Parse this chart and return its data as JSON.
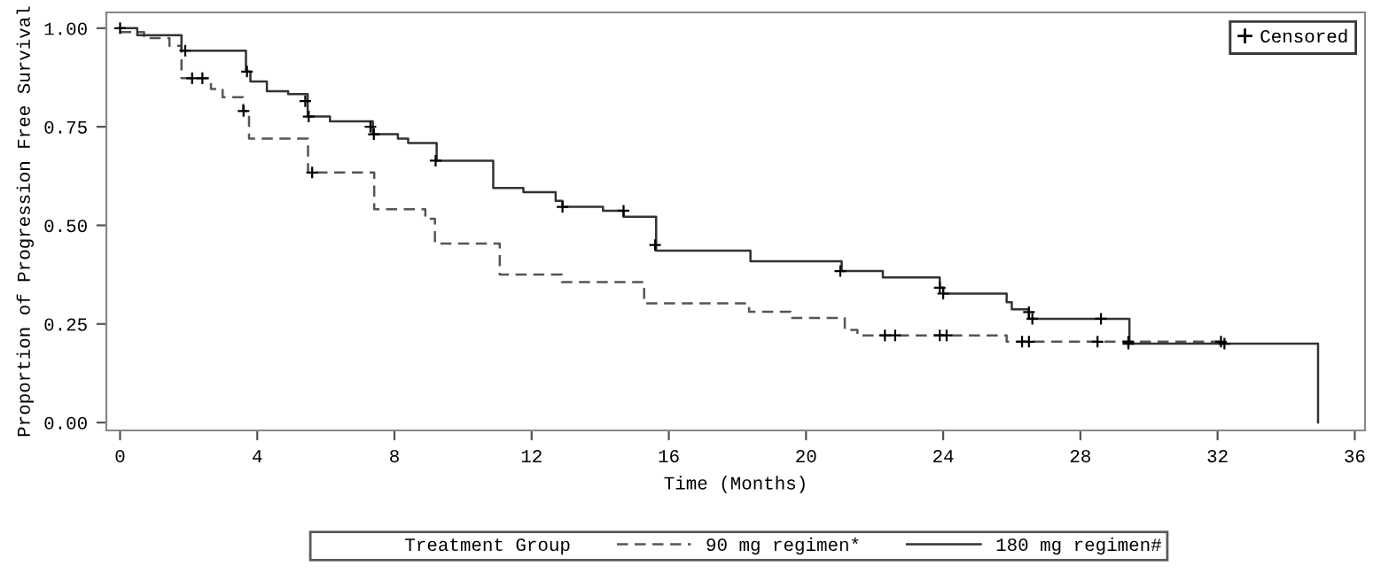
{
  "chart_data": {
    "type": "step",
    "xlabel": "Time (Months)",
    "ylabel": "Proportion of Progression Free Survival",
    "legend_title": "Treatment Group",
    "legend": "bottom",
    "xlim": [
      -0.4,
      36.3
    ],
    "xticks": [
      0,
      4,
      8,
      12,
      16,
      20,
      24,
      28,
      32,
      36
    ],
    "ylim": [
      -0.02,
      1.04
    ],
    "yticks": [
      {
        "value": 0,
        "label": "0.00"
      },
      {
        "value": 0.25,
        "label": "0.25"
      },
      {
        "value": 0.5,
        "label": "0.50"
      },
      {
        "value": 0.75,
        "label": "0.75"
      },
      {
        "value": 1,
        "label": "1.00"
      }
    ],
    "grid": false,
    "series": [
      {
        "name": "90 mg regimen*",
        "color": "#555555",
        "line_style": "dashed",
        "x": [
          0,
          0.7,
          1.44,
          1.79,
          2.65,
          2.99,
          3.59,
          3.76,
          5.48,
          7.41,
          8.9,
          9.18,
          11.07,
          12.88,
          15.28,
          18.34,
          19.55,
          21.13,
          21.5,
          25.85,
          32.2
        ],
        "values": [
          0.99,
          0.975,
          0.955,
          0.873,
          0.846,
          0.825,
          0.79,
          0.72,
          0.634,
          0.541,
          0.517,
          0.454,
          0.375,
          0.356,
          0.302,
          0.281,
          0.265,
          0.235,
          0.221,
          0.205,
          0.205
        ]
      },
      {
        "name": "180 mg regimen#",
        "color": "#333333",
        "line_style": "solid",
        "x": [
          0,
          0.5,
          1.79,
          3.67,
          3.8,
          4.28,
          4.9,
          5.47,
          6.12,
          7.37,
          8.1,
          8.4,
          9.23,
          10.88,
          11.76,
          12.7,
          12.9,
          14.08,
          14.68,
          15.63,
          18.38,
          21.04,
          22.24,
          23.9,
          24.0,
          25.85,
          26.0,
          26.5,
          29.43,
          34.93
        ],
        "values": [
          1.0,
          0.982,
          0.943,
          0.89,
          0.865,
          0.84,
          0.833,
          0.776,
          0.764,
          0.731,
          0.72,
          0.709,
          0.664,
          0.595,
          0.584,
          0.562,
          0.547,
          0.537,
          0.522,
          0.436,
          0.409,
          0.384,
          0.368,
          0.342,
          0.327,
          0.305,
          0.287,
          0.263,
          0.2,
          0.0
        ]
      },
      {
        "name": "Censored",
        "type": "scatter",
        "marker": "cross",
        "color": "#000000",
        "x": [
          0,
          1.9,
          3.7,
          5.4,
          5.5,
          7.3,
          7.4,
          9.2,
          12.9,
          14.68,
          15.6,
          21.0,
          23.9,
          24.0,
          26.5,
          26.6,
          28.6,
          29.4,
          32.2,
          2.1,
          2.4,
          3.6,
          5.6,
          22.3,
          22.6,
          23.9,
          24.1,
          26.3,
          26.5,
          28.5,
          29.4,
          32.1
        ],
        "values": [
          1.0,
          0.943,
          0.89,
          0.815,
          0.776,
          0.75,
          0.731,
          0.664,
          0.547,
          0.537,
          0.45,
          0.384,
          0.342,
          0.327,
          0.28,
          0.263,
          0.263,
          0.2,
          0.2,
          0.873,
          0.873,
          0.79,
          0.634,
          0.221,
          0.221,
          0.221,
          0.221,
          0.205,
          0.205,
          0.205,
          0.205,
          0.205
        ]
      }
    ]
  }
}
